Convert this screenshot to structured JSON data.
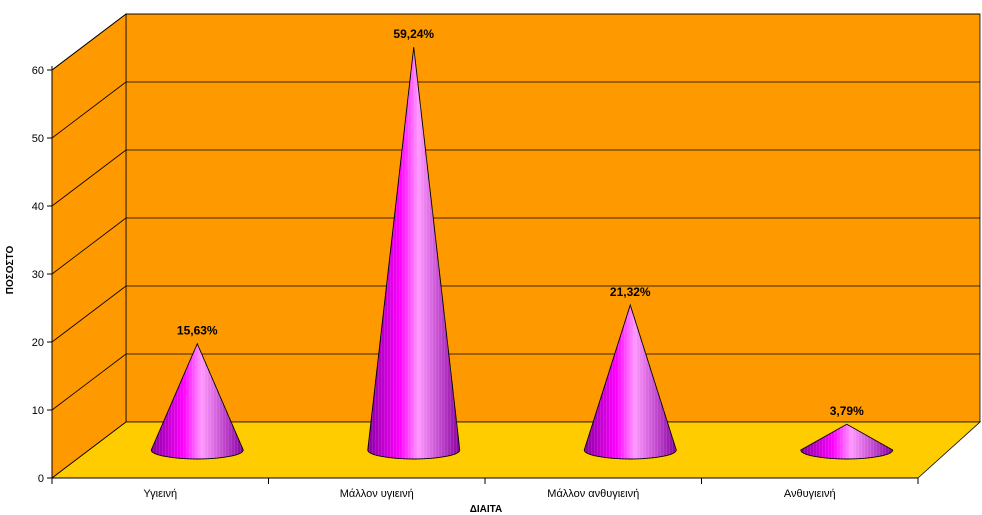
{
  "chart_data": {
    "type": "bar",
    "shape": "cone-3d",
    "categories": [
      "Υγιεινή",
      "Μάλλον υγιεινή",
      "Μάλλον ανθυγιεινή",
      "Ανθυγιεινή"
    ],
    "values": [
      15.63,
      59.24,
      21.32,
      3.79
    ],
    "data_labels": [
      "15,63%",
      "59,24%",
      "21,32%",
      "3,79%"
    ],
    "xlabel": "ΔΙΑΙΤΑ",
    "ylabel": "ΠΟΣΟΣΤΟ",
    "ylim": [
      0,
      60
    ],
    "yticks": [
      "0",
      "10",
      "20",
      "30",
      "40",
      "50",
      "60"
    ],
    "grid": true,
    "colors": {
      "wall": "#FF9900",
      "floor": "#FFCC00",
      "cone_dark": "#8800A0",
      "cone_mid": "#FF00FF",
      "cone_light": "#FF99FF",
      "outline": "#000000"
    }
  }
}
